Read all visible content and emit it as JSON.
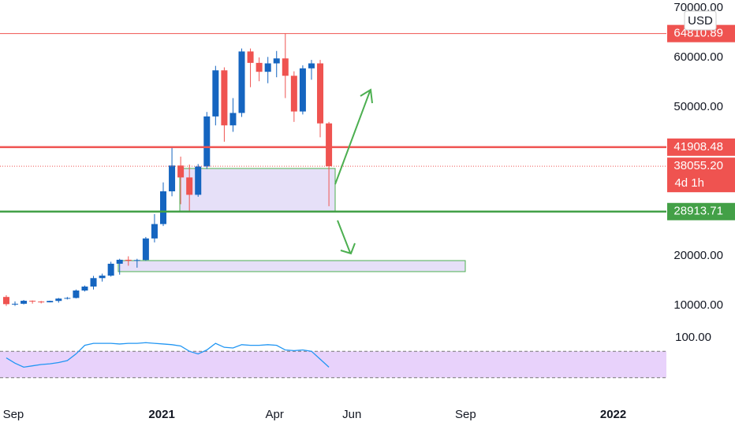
{
  "chart_data": {
    "type": "candlestick",
    "currency": "USD",
    "countdown": "4d 1h",
    "up_color": "#1565c0",
    "down_color": "#ef5350",
    "ohlc": [
      [
        11700,
        12050,
        9900,
        10250
      ],
      [
        10250,
        10800,
        9900,
        10330
      ],
      [
        10330,
        11100,
        10200,
        10930
      ],
      [
        10930,
        11000,
        10350,
        10770
      ],
      [
        10770,
        10900,
        10400,
        10620
      ],
      [
        10620,
        10950,
        10600,
        10900
      ],
      [
        10900,
        11500,
        10550,
        11370
      ],
      [
        11370,
        11700,
        11200,
        11500
      ],
      [
        11500,
        13200,
        11400,
        13000
      ],
      [
        13000,
        14000,
        12800,
        13800
      ],
      [
        13800,
        15950,
        13200,
        15500
      ],
      [
        15500,
        16400,
        14800,
        16000
      ],
      [
        16000,
        18800,
        15800,
        18400
      ],
      [
        18400,
        19400,
        16200,
        19200
      ],
      [
        19200,
        19900,
        18000,
        19000
      ],
      [
        19000,
        19400,
        17600,
        19150
      ],
      [
        19150,
        23800,
        19000,
        23500
      ],
      [
        23500,
        28400,
        22700,
        26400
      ],
      [
        26400,
        34800,
        26000,
        33000
      ],
      [
        33000,
        41900,
        32000,
        38200
      ],
      [
        38200,
        40000,
        30400,
        35800
      ],
      [
        35800,
        38400,
        28900,
        32300
      ],
      [
        32300,
        38500,
        31900,
        38000
      ],
      [
        38000,
        49000,
        37500,
        48100
      ],
      [
        48100,
        58300,
        46300,
        57400
      ],
      [
        57400,
        58000,
        43000,
        46300
      ],
      [
        46300,
        51800,
        45000,
        48800
      ],
      [
        48800,
        61800,
        48000,
        61200
      ],
      [
        61200,
        61800,
        54000,
        58900
      ],
      [
        58900,
        60000,
        55200,
        57100
      ],
      [
        57100,
        60100,
        54800,
        58800
      ],
      [
        58800,
        61300,
        56000,
        59800
      ],
      [
        59800,
        64810.89,
        51800,
        56300
      ],
      [
        56300,
        57200,
        47000,
        49100
      ],
      [
        49100,
        58400,
        48500,
        57800
      ],
      [
        57800,
        59500,
        55500,
        58800
      ],
      [
        58800,
        59500,
        43900,
        46700
      ],
      [
        46700,
        47000,
        30000,
        38055.2
      ]
    ],
    "xlim": [
      -0.72,
      75.7
    ],
    "xticks": [
      {
        "value": 0.81,
        "label": "Sep"
      },
      {
        "value": 17.83,
        "label": "2021"
      },
      {
        "value": 30.77,
        "label": "Apr"
      },
      {
        "value": 39.64,
        "label": "Jun"
      },
      {
        "value": 52.67,
        "label": "Sep"
      },
      {
        "value": 69.6,
        "label": "2022"
      }
    ],
    "ylim": [
      3000,
      71500
    ],
    "yticks": [
      {
        "value": 70000,
        "label": "70000.00"
      },
      {
        "value": 60000,
        "label": "60000.00"
      },
      {
        "value": 50000,
        "label": "50000.00"
      },
      {
        "value": 20000,
        "label": "20000.00"
      },
      {
        "value": 10000,
        "label": "10000.00"
      }
    ],
    "levels": [
      {
        "value": 64810.89,
        "label": "64810.89",
        "color": "#ef5350"
      },
      {
        "value": 41908.48,
        "label": "41908.48",
        "color": "#ef5350"
      },
      {
        "value": 38055.2,
        "label": "38055.20",
        "color": "#ef5350"
      },
      {
        "value": 28913.71,
        "label": "28913.71",
        "color": "#43a047"
      }
    ],
    "rsi": {
      "color": "#2196f3",
      "band_color": "#e8d2fb",
      "ylim": [
        0,
        100
      ],
      "yticks": [
        {
          "value": 100,
          "label": "100.00"
        }
      ],
      "band": [
        30,
        70
      ],
      "values": [
        60,
        52,
        46,
        48,
        50,
        51,
        53,
        56,
        66,
        79,
        82,
        82,
        82,
        81,
        82,
        82,
        83,
        82,
        81,
        80,
        78,
        70,
        66,
        72,
        82,
        76,
        75,
        80,
        79,
        79,
        80,
        79,
        72,
        71,
        72,
        70,
        58,
        46
      ]
    }
  }
}
